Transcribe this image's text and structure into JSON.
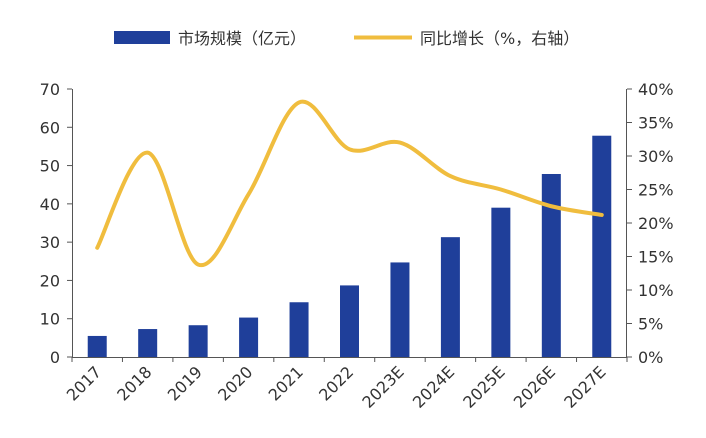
{
  "chart_data": {
    "type": "bar",
    "title": "",
    "xlabel": "",
    "ylabel": "",
    "categories": [
      "2017",
      "2018",
      "2019",
      "2020",
      "2021",
      "2022",
      "2023E",
      "2024E",
      "2025E",
      "2026E",
      "2027E"
    ],
    "series": [
      {
        "name": "市场规模（亿元）",
        "type": "bar",
        "axis": "left",
        "color": "#1f3f9a",
        "values": [
          5.5,
          7.3,
          8.3,
          10.3,
          14.3,
          18.7,
          24.7,
          31.3,
          39.0,
          47.8,
          57.8
        ]
      },
      {
        "name": "同比增长（%，右轴）",
        "type": "line",
        "axis": "right",
        "color": "#f0bd3e",
        "values": [
          0.163,
          0.305,
          0.138,
          0.243,
          0.38,
          0.31,
          0.32,
          0.27,
          0.25,
          0.225,
          0.212
        ]
      }
    ],
    "ylim": [
      0,
      70
    ],
    "y_ticks": [
      "0",
      "10",
      "20",
      "30",
      "40",
      "50",
      "60",
      "70"
    ],
    "y2lim": [
      0,
      0.4
    ],
    "y2_ticks": [
      "0%",
      "5%",
      "10%",
      "15%",
      "20%",
      "25%",
      "30%",
      "35%",
      "40%"
    ],
    "grid": false,
    "legend_position": "top"
  }
}
